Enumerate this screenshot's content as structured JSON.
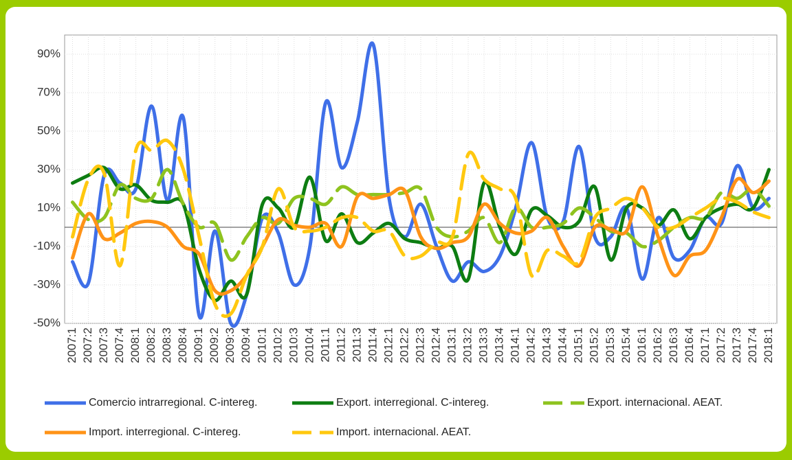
{
  "chart_data": {
    "type": "line",
    "categories": [
      "2007:1",
      "2007:2",
      "2007:3",
      "2007:4",
      "2008:1",
      "2008:2",
      "2008:3",
      "2008:4",
      "2009:1",
      "2009:2",
      "2009:3",
      "2009:4",
      "2010:1",
      "2010:2",
      "2010:3",
      "2010:4",
      "2011:1",
      "2011:2",
      "2011:3",
      "2011:4",
      "2012:1",
      "2012:2",
      "2012:3",
      "2012:4",
      "2013:1",
      "2013:2",
      "2013:3",
      "2013:4",
      "2014:1",
      "2014:2",
      "2014:3",
      "2014:4",
      "2015:1",
      "2015:2",
      "2015:3",
      "2015:4",
      "2016:1",
      "2016:2",
      "2016:3",
      "2016:4",
      "2017:1",
      "2017:2",
      "2017:3",
      "2017:4",
      "2018:1"
    ],
    "ylim": [
      -50,
      100
    ],
    "yticks": [
      {
        "value": -50,
        "label": "-50%"
      },
      {
        "value": -30,
        "label": "-30%"
      },
      {
        "value": -10,
        "label": "-10%"
      },
      {
        "value": 10,
        "label": "10%"
      },
      {
        "value": 30,
        "label": "30%"
      },
      {
        "value": 50,
        "label": "50%"
      },
      {
        "value": 70,
        "label": "70%"
      },
      {
        "value": 90,
        "label": "90%"
      }
    ],
    "grid": true,
    "legend": "bottom",
    "series": [
      {
        "name": "Comercio intrarregional. C-intereg.",
        "color": "#3f6fe8",
        "dashed": false,
        "values": [
          -18,
          -29,
          27,
          23,
          20,
          63,
          14,
          57,
          -46,
          -2,
          -50,
          -35,
          5,
          -3,
          -30,
          -10,
          65,
          31,
          55,
          95,
          15,
          -5,
          12,
          -10,
          -28,
          -18,
          -23,
          -15,
          10,
          44,
          5,
          3,
          42,
          -5,
          -5,
          10,
          -27,
          5,
          -16,
          -12,
          5,
          2,
          32,
          10,
          15
        ]
      },
      {
        "name": "Export. interregional. C-intereg.",
        "color": "#0d7d12",
        "dashed": false,
        "values": [
          23,
          27,
          31,
          20,
          22,
          14,
          13,
          12,
          -22,
          -38,
          -28,
          -35,
          12,
          10,
          0,
          26,
          -7,
          7,
          -8,
          -3,
          2,
          -6,
          -8,
          -11,
          -10,
          -27,
          23,
          0,
          -14,
          9,
          6,
          0,
          3,
          21,
          -17,
          10,
          10,
          1,
          9,
          -6,
          5,
          10,
          12,
          10,
          30
        ]
      },
      {
        "name": "Export. internacional. AEAT.",
        "color": "#8ec31f",
        "dashed": true,
        "values": [
          13,
          4,
          5,
          22,
          15,
          15,
          30,
          12,
          0,
          2,
          -17,
          -5,
          5,
          2,
          15,
          15,
          12,
          21,
          17,
          17,
          17,
          18,
          20,
          0,
          -5,
          -2,
          5,
          -8,
          10,
          0,
          0,
          2,
          10,
          5,
          -2,
          -3,
          -10,
          -7,
          0,
          5,
          5,
          18,
          15,
          20,
          11
        ]
      },
      {
        "name": "Import. interregional. C-intereg.",
        "color": "#ff9317",
        "dashed": false,
        "values": [
          -16,
          7,
          -6,
          -3,
          2,
          3,
          0,
          -10,
          -14,
          -33,
          -33,
          -25,
          -10,
          4,
          1,
          0,
          2,
          -10,
          16,
          15,
          17,
          19,
          -5,
          -11,
          -8,
          -5,
          12,
          2,
          -3,
          -2,
          5,
          -10,
          -20,
          0,
          -1,
          -2,
          21,
          -5,
          -25,
          -15,
          -12,
          5,
          25,
          18,
          24
        ]
      },
      {
        "name": "Import. internacional. AEAT.",
        "color": "#ffc80f",
        "dashed": true,
        "values": [
          -5,
          25,
          28,
          -20,
          40,
          40,
          45,
          30,
          -5,
          -40,
          -45,
          -25,
          -10,
          20,
          0,
          -2,
          0,
          5,
          5,
          -2,
          -2,
          -15,
          -15,
          -8,
          -5,
          38,
          25,
          20,
          15,
          -25,
          -12,
          -15,
          -18,
          5,
          10,
          15,
          10,
          0,
          0,
          5,
          10,
          15,
          13,
          8,
          5
        ]
      }
    ]
  }
}
